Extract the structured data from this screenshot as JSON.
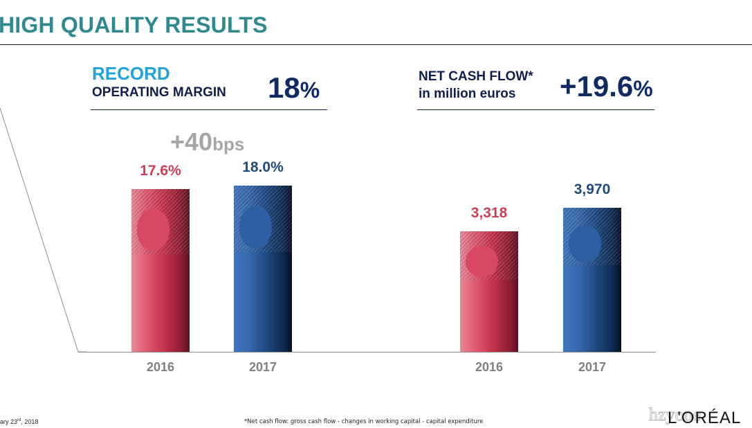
{
  "header": {
    "title": "HIGH QUALITY RESULTS"
  },
  "kpi_left": {
    "line1": "RECORD",
    "line2": "OPERATING MARGIN",
    "value": "18",
    "unit": "%"
  },
  "kpi_right": {
    "line1": "NET CASH FLOW*",
    "line2": "in million euros",
    "value": "+19.6",
    "unit": "%"
  },
  "delta": {
    "value": "+40",
    "unit": "bps"
  },
  "colors": {
    "red": "#cd3d56",
    "blue": "#1e4a7e",
    "teal": "#2e8a8f",
    "navy": "#102a64"
  },
  "chart_data": [
    {
      "type": "bar",
      "title": "RECORD OPERATING MARGIN",
      "categories": [
        "2016",
        "2017"
      ],
      "values": [
        17.6,
        18.0
      ],
      "labels": [
        "17.6%",
        "18.0%"
      ],
      "ylim": [
        0,
        18.0
      ],
      "xlabel": "",
      "ylabel": ""
    },
    {
      "type": "bar",
      "title": "NET CASH FLOW* in million euros",
      "categories": [
        "2016",
        "2017"
      ],
      "values": [
        3318,
        3970
      ],
      "labels": [
        "3,318",
        "3,970"
      ],
      "ylim": [
        0,
        3970
      ],
      "xlabel": "",
      "ylabel": ""
    }
  ],
  "footer": {
    "date": "ary 23rd, 2018",
    "date_main": "ary 23",
    "date_sup": "rd",
    "date_tail": ", 2018",
    "footnote": "*Net cash flow: gross cash flow - changes in working capital - capital expenditure",
    "watermark": "hzyone",
    "logo": "L'ORÉAL"
  }
}
